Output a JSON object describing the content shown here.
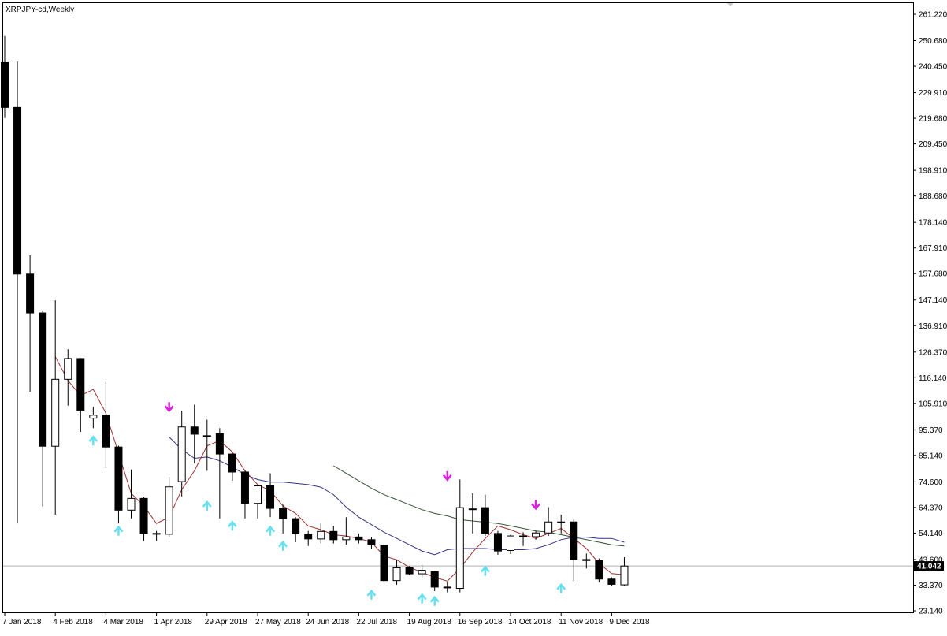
{
  "chart_title": "XRPJPY-cd,Weekly",
  "current_price": "41.042",
  "colors": {
    "background": "#ffffff",
    "frame": "#000000",
    "bear_body": "#000000",
    "bull_body": "#ffffff",
    "ma_fast": "#a03030",
    "ma_mid": "#333388",
    "ma_slow": "#335533",
    "arrow_up": "#66e0f0",
    "arrow_down": "#dd22dd",
    "price_line": "#b0b0b0",
    "badge_bg": "#000000",
    "badge_text": "#ffffff"
  },
  "chart_data": {
    "type": "candlestick",
    "title": "XRPJPY-cd,Weekly",
    "ylim": [
      23.14,
      261.22
    ],
    "y_ticks": [
      "261.220",
      "250.680",
      "240.450",
      "229.910",
      "219.680",
      "209.450",
      "198.910",
      "188.680",
      "178.140",
      "167.910",
      "157.680",
      "147.140",
      "136.910",
      "126.370",
      "116.140",
      "105.910",
      "95.370",
      "85.140",
      "74.600",
      "64.370",
      "54.140",
      "43.600",
      "33.370",
      "23.140"
    ],
    "x_tick_labels": [
      {
        "label": "7 Jan 2018",
        "index": 0
      },
      {
        "label": "4 Feb 2018",
        "index": 4
      },
      {
        "label": "4 Mar 2018",
        "index": 8
      },
      {
        "label": "1 Apr 2018",
        "index": 12
      },
      {
        "label": "29 Apr 2018",
        "index": 16
      },
      {
        "label": "27 May 2018",
        "index": 20
      },
      {
        "label": "24 Jun 2018",
        "index": 24
      },
      {
        "label": "22 Jul 2018",
        "index": 28
      },
      {
        "label": "19 Aug 2018",
        "index": 32
      },
      {
        "label": "16 Sep 2018",
        "index": 36
      },
      {
        "label": "14 Oct 2018",
        "index": 40
      },
      {
        "label": "11 Nov 2018",
        "index": 44
      },
      {
        "label": "9 Dec 2018",
        "index": 48
      }
    ],
    "candles": [
      {
        "o": 241.9,
        "h": 252.5,
        "l": 219.8,
        "c": 224.0
      },
      {
        "o": 224.0,
        "h": 242.3,
        "l": 58.0,
        "c": 157.5
      },
      {
        "o": 157.5,
        "h": 165.0,
        "l": 110.5,
        "c": 142.0
      },
      {
        "o": 142.0,
        "h": 143.0,
        "l": 64.8,
        "c": 88.8
      },
      {
        "o": 88.8,
        "h": 147.0,
        "l": 61.5,
        "c": 115.5
      },
      {
        "o": 115.5,
        "h": 127.5,
        "l": 105.0,
        "c": 123.8
      },
      {
        "o": 123.8,
        "h": 124.0,
        "l": 94.5,
        "c": 103.2
      },
      {
        "o": 100.0,
        "h": 104.5,
        "l": 96.0,
        "c": 101.2
      },
      {
        "o": 101.2,
        "h": 115.0,
        "l": 80.0,
        "c": 88.5
      },
      {
        "o": 88.5,
        "h": 89.0,
        "l": 58.0,
        "c": 63.3
      },
      {
        "o": 63.3,
        "h": 79.5,
        "l": 60.0,
        "c": 68.0
      },
      {
        "o": 68.0,
        "h": 68.5,
        "l": 51.0,
        "c": 54.0
      },
      {
        "o": 54.0,
        "h": 55.0,
        "l": 51.0,
        "c": 54.0
      },
      {
        "o": 53.7,
        "h": 76.5,
        "l": 52.5,
        "c": 72.6
      },
      {
        "o": 74.7,
        "h": 103.0,
        "l": 68.8,
        "c": 96.5
      },
      {
        "o": 96.5,
        "h": 105.4,
        "l": 82.0,
        "c": 93.6
      },
      {
        "o": 93.0,
        "h": 99.4,
        "l": 79.0,
        "c": 93.0
      },
      {
        "o": 93.8,
        "h": 96.0,
        "l": 60.0,
        "c": 85.7
      },
      {
        "o": 85.7,
        "h": 86.0,
        "l": 75.0,
        "c": 78.5
      },
      {
        "o": 78.5,
        "h": 79.0,
        "l": 60.0,
        "c": 66.0
      },
      {
        "o": 66.0,
        "h": 73.0,
        "l": 60.0,
        "c": 73.0
      },
      {
        "o": 73.0,
        "h": 78.0,
        "l": 60.5,
        "c": 64.0
      },
      {
        "o": 64.0,
        "h": 65.5,
        "l": 54.0,
        "c": 59.9
      },
      {
        "o": 59.9,
        "h": 60.5,
        "l": 50.5,
        "c": 53.8
      },
      {
        "o": 53.8,
        "h": 55.0,
        "l": 49.0,
        "c": 51.8
      },
      {
        "o": 51.8,
        "h": 58.0,
        "l": 50.0,
        "c": 54.8
      },
      {
        "o": 54.8,
        "h": 57.0,
        "l": 50.0,
        "c": 51.5
      },
      {
        "o": 51.5,
        "h": 60.5,
        "l": 49.5,
        "c": 52.6
      },
      {
        "o": 52.6,
        "h": 54.0,
        "l": 50.0,
        "c": 51.5
      },
      {
        "o": 51.5,
        "h": 52.5,
        "l": 48.0,
        "c": 49.4
      },
      {
        "o": 49.4,
        "h": 50.0,
        "l": 34.0,
        "c": 35.2
      },
      {
        "o": 35.2,
        "h": 43.5,
        "l": 33.5,
        "c": 40.3
      },
      {
        "o": 40.3,
        "h": 41.0,
        "l": 37.5,
        "c": 37.9
      },
      {
        "o": 37.9,
        "h": 41.5,
        "l": 36.0,
        "c": 39.3
      },
      {
        "o": 38.8,
        "h": 39.0,
        "l": 31.0,
        "c": 32.6
      },
      {
        "o": 32.6,
        "h": 34.5,
        "l": 30.5,
        "c": 32.6
      },
      {
        "o": 32.1,
        "h": 75.5,
        "l": 30.5,
        "c": 64.3
      },
      {
        "o": 63.8,
        "h": 70.0,
        "l": 54.0,
        "c": 63.8
      },
      {
        "o": 64.3,
        "h": 69.5,
        "l": 53.0,
        "c": 54.0
      },
      {
        "o": 54.0,
        "h": 55.0,
        "l": 45.5,
        "c": 47.0
      },
      {
        "o": 47.2,
        "h": 53.5,
        "l": 45.8,
        "c": 53.0
      },
      {
        "o": 53.0,
        "h": 54.5,
        "l": 49.0,
        "c": 53.0
      },
      {
        "o": 52.7,
        "h": 55.0,
        "l": 51.5,
        "c": 54.2
      },
      {
        "o": 54.2,
        "h": 64.5,
        "l": 53.0,
        "c": 58.6
      },
      {
        "o": 58.6,
        "h": 61.5,
        "l": 54.0,
        "c": 58.6
      },
      {
        "o": 58.6,
        "h": 59.5,
        "l": 35.0,
        "c": 43.6
      },
      {
        "o": 43.6,
        "h": 46.0,
        "l": 40.0,
        "c": 43.2
      },
      {
        "o": 43.2,
        "h": 44.0,
        "l": 34.5,
        "c": 35.8
      },
      {
        "o": 35.8,
        "h": 36.5,
        "l": 33.0,
        "c": 33.7
      },
      {
        "o": 33.5,
        "h": 44.5,
        "l": 33.0,
        "c": 41.0
      }
    ],
    "ma_fast": [
      {
        "i": 4,
        "v": 124.5
      },
      {
        "i": 5,
        "v": 115.0
      },
      {
        "i": 6,
        "v": 109.0
      },
      {
        "i": 7,
        "v": 111.5
      },
      {
        "i": 8,
        "v": 102.0
      },
      {
        "i": 9,
        "v": 86.0
      },
      {
        "i": 10,
        "v": 70.0
      },
      {
        "i": 11,
        "v": 65.0
      },
      {
        "i": 12,
        "v": 58.0
      },
      {
        "i": 13,
        "v": 60.5
      },
      {
        "i": 14,
        "v": 71.5
      },
      {
        "i": 15,
        "v": 79.0
      },
      {
        "i": 16,
        "v": 89.0
      },
      {
        "i": 17,
        "v": 91.0
      },
      {
        "i": 18,
        "v": 86.5
      },
      {
        "i": 19,
        "v": 79.0
      },
      {
        "i": 20,
        "v": 73.5
      },
      {
        "i": 21,
        "v": 71.0
      },
      {
        "i": 22,
        "v": 65.0
      },
      {
        "i": 23,
        "v": 62.0
      },
      {
        "i": 24,
        "v": 57.0
      },
      {
        "i": 25,
        "v": 55.5
      },
      {
        "i": 26,
        "v": 53.5
      },
      {
        "i": 27,
        "v": 53.0
      },
      {
        "i": 28,
        "v": 52.0
      },
      {
        "i": 29,
        "v": 50.5
      },
      {
        "i": 30,
        "v": 45.0
      },
      {
        "i": 31,
        "v": 43.5
      },
      {
        "i": 32,
        "v": 40.5
      },
      {
        "i": 33,
        "v": 38.5
      },
      {
        "i": 34,
        "v": 36.5
      },
      {
        "i": 35,
        "v": 35.0
      },
      {
        "i": 36,
        "v": 40.0
      },
      {
        "i": 37,
        "v": 46.5
      },
      {
        "i": 38,
        "v": 52.0
      },
      {
        "i": 39,
        "v": 57.0
      },
      {
        "i": 40,
        "v": 55.5
      },
      {
        "i": 41,
        "v": 53.5
      },
      {
        "i": 42,
        "v": 52.0
      },
      {
        "i": 43,
        "v": 54.0
      },
      {
        "i": 44,
        "v": 56.0
      },
      {
        "i": 45,
        "v": 52.0
      },
      {
        "i": 46,
        "v": 48.0
      },
      {
        "i": 47,
        "v": 42.0
      },
      {
        "i": 48,
        "v": 38.0
      },
      {
        "i": 49,
        "v": 37.5
      }
    ],
    "ma_mid": [
      {
        "i": 13,
        "v": 92.5
      },
      {
        "i": 14,
        "v": 87.5
      },
      {
        "i": 15,
        "v": 84.0
      },
      {
        "i": 16,
        "v": 84.5
      },
      {
        "i": 17,
        "v": 83.0
      },
      {
        "i": 18,
        "v": 80.5
      },
      {
        "i": 19,
        "v": 77.5
      },
      {
        "i": 20,
        "v": 75.5
      },
      {
        "i": 21,
        "v": 74.5
      },
      {
        "i": 22,
        "v": 74.5
      },
      {
        "i": 23,
        "v": 74.0
      },
      {
        "i": 24,
        "v": 73.5
      },
      {
        "i": 25,
        "v": 72.5
      },
      {
        "i": 26,
        "v": 69.5
      },
      {
        "i": 27,
        "v": 64.5
      },
      {
        "i": 28,
        "v": 60.5
      },
      {
        "i": 29,
        "v": 57.5
      },
      {
        "i": 30,
        "v": 54.5
      },
      {
        "i": 31,
        "v": 52.0
      },
      {
        "i": 32,
        "v": 49.5
      },
      {
        "i": 33,
        "v": 47.0
      },
      {
        "i": 34,
        "v": 45.5
      },
      {
        "i": 35,
        "v": 47.5
      },
      {
        "i": 36,
        "v": 48.0
      },
      {
        "i": 37,
        "v": 48.0
      },
      {
        "i": 38,
        "v": 48.0
      },
      {
        "i": 39,
        "v": 47.5
      },
      {
        "i": 40,
        "v": 47.5
      },
      {
        "i": 41,
        "v": 47.5
      },
      {
        "i": 42,
        "v": 48.0
      },
      {
        "i": 43,
        "v": 49.5
      },
      {
        "i": 44,
        "v": 51.5
      },
      {
        "i": 45,
        "v": 52.5
      },
      {
        "i": 46,
        "v": 52.5
      },
      {
        "i": 47,
        "v": 52.0
      },
      {
        "i": 48,
        "v": 52.0
      },
      {
        "i": 49,
        "v": 50.5
      }
    ],
    "ma_slow": [
      {
        "i": 26,
        "v": 81.0
      },
      {
        "i": 27,
        "v": 78.0
      },
      {
        "i": 28,
        "v": 75.0
      },
      {
        "i": 29,
        "v": 72.0
      },
      {
        "i": 30,
        "v": 69.5
      },
      {
        "i": 31,
        "v": 67.5
      },
      {
        "i": 32,
        "v": 65.5
      },
      {
        "i": 33,
        "v": 63.5
      },
      {
        "i": 34,
        "v": 62.0
      },
      {
        "i": 35,
        "v": 61.0
      },
      {
        "i": 36,
        "v": 59.5
      },
      {
        "i": 37,
        "v": 59.0
      },
      {
        "i": 38,
        "v": 58.5
      },
      {
        "i": 39,
        "v": 58.0
      },
      {
        "i": 40,
        "v": 57.0
      },
      {
        "i": 41,
        "v": 56.0
      },
      {
        "i": 42,
        "v": 55.0
      },
      {
        "i": 43,
        "v": 54.5
      },
      {
        "i": 44,
        "v": 53.5
      },
      {
        "i": 45,
        "v": 52.5
      },
      {
        "i": 46,
        "v": 51.5
      },
      {
        "i": 47,
        "v": 50.5
      },
      {
        "i": 48,
        "v": 49.5
      },
      {
        "i": 49,
        "v": 49.0
      }
    ],
    "arrows_up": [
      {
        "i": 7,
        "v": 91.0
      },
      {
        "i": 9,
        "v": 55.0
      },
      {
        "i": 16,
        "v": 65.0
      },
      {
        "i": 18,
        "v": 57.0
      },
      {
        "i": 21,
        "v": 55.0
      },
      {
        "i": 22,
        "v": 49.0
      },
      {
        "i": 29,
        "v": 29.5
      },
      {
        "i": 33,
        "v": 28.0
      },
      {
        "i": 34,
        "v": 27.0
      },
      {
        "i": 38,
        "v": 39.0
      },
      {
        "i": 44,
        "v": 32.0
      }
    ],
    "arrows_down": [
      {
        "i": 13,
        "v": 104.5
      },
      {
        "i": 35,
        "v": 77.0
      },
      {
        "i": 42,
        "v": 65.5
      }
    ]
  }
}
